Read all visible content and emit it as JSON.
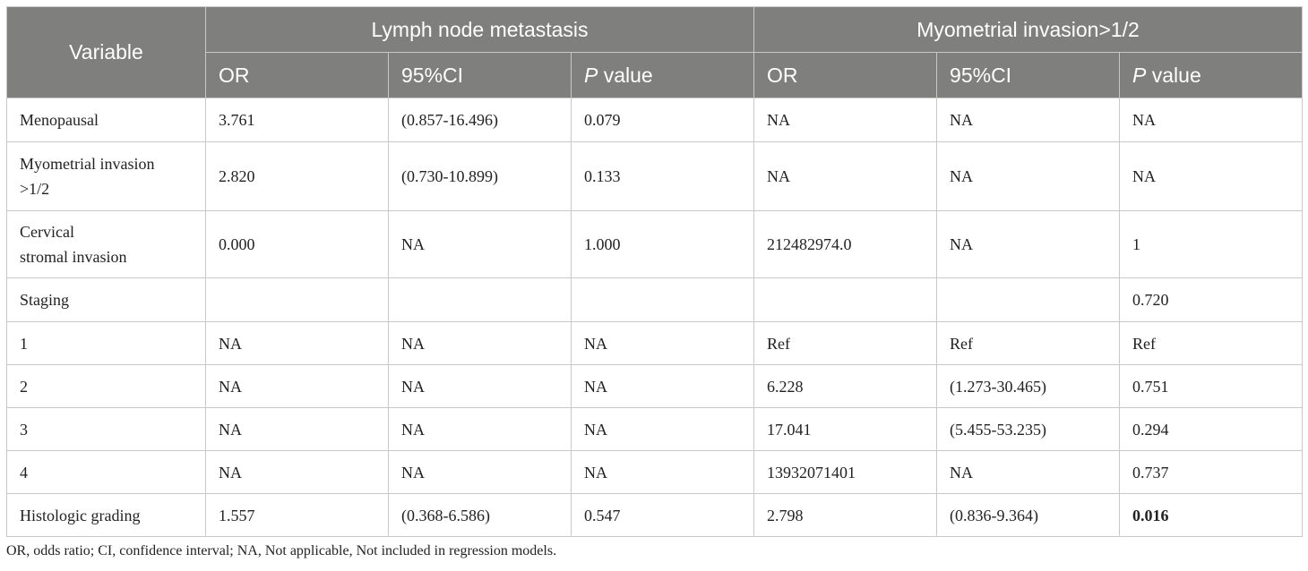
{
  "table": {
    "header": {
      "variable": "Variable",
      "group1": "Lymph node metastasis",
      "group2": "Myometrial invasion>1/2",
      "or": "OR",
      "ci": "95%CI",
      "p_italic": "P",
      "p_rest": " value"
    },
    "rows": [
      {
        "var": "Menopausal",
        "or1": "3.761",
        "ci1": "(0.857-16.496)",
        "p1": "0.079",
        "or2": "NA",
        "ci2": "NA",
        "p2": "NA"
      },
      {
        "var_line1": "Myometrial invasion",
        "var_line2": ">1/2",
        "or1": "2.820",
        "ci1": "(0.730-10.899)",
        "p1": "0.133",
        "or2": "NA",
        "ci2": "NA",
        "p2": "NA"
      },
      {
        "var_line1": "Cervical",
        "var_line2": "stromal invasion",
        "or1": "0.000",
        "ci1": "NA",
        "p1": "1.000",
        "or2": "212482974.0",
        "ci2": "NA",
        "p2": "1"
      },
      {
        "var": "Staging",
        "or1": "",
        "ci1": "",
        "p1": "",
        "or2": "",
        "ci2": "",
        "p2": "0.720"
      },
      {
        "var": "1",
        "or1": "NA",
        "ci1": "NA",
        "p1": "NA",
        "or2": "Ref",
        "ci2": "Ref",
        "p2": "Ref"
      },
      {
        "var": "2",
        "or1": "NA",
        "ci1": "NA",
        "p1": "NA",
        "or2": "6.228",
        "ci2": "(1.273-30.465)",
        "p2": "0.751"
      },
      {
        "var": "3",
        "or1": "NA",
        "ci1": "NA",
        "p1": "NA",
        "or2": "17.041",
        "ci2": "(5.455-53.235)",
        "p2": "0.294"
      },
      {
        "var": "4",
        "or1": "NA",
        "ci1": "NA",
        "p1": "NA",
        "or2": "13932071401",
        "ci2": "NA",
        "p2": "0.737"
      },
      {
        "var": "Histologic grading",
        "or1": "1.557",
        "ci1": "(0.368-6.586)",
        "p1": "0.547",
        "or2": "2.798",
        "ci2": "(0.836-9.364)",
        "p2": "0.016"
      }
    ]
  },
  "footnote": "OR, odds ratio; CI, confidence interval; NA, Not applicable, Not included in regression models."
}
